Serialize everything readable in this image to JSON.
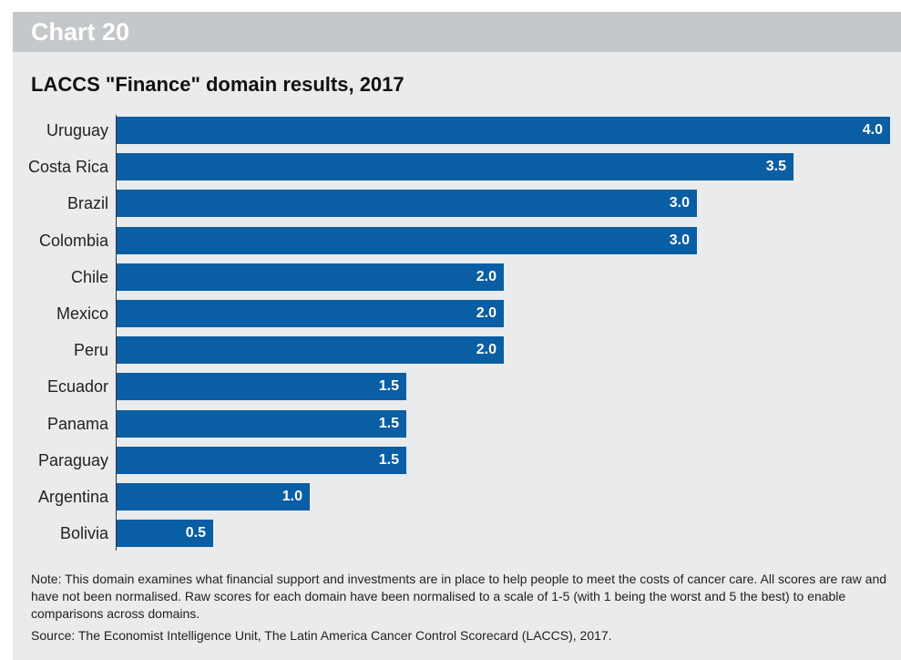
{
  "header": {
    "chart_label": "Chart 20",
    "title": "LACCS \"Finance\" domain results, 2017"
  },
  "chart_data": {
    "type": "bar",
    "orientation": "horizontal",
    "title": "LACCS \"Finance\" domain results, 2017",
    "categories": [
      "Uruguay",
      "Costa Rica",
      "Brazil",
      "Colombia",
      "Chile",
      "Mexico",
      "Peru",
      "Ecuador",
      "Panama",
      "Paraguay",
      "Argentina",
      "Bolivia"
    ],
    "values": [
      4.0,
      3.5,
      3.0,
      3.0,
      2.0,
      2.0,
      2.0,
      1.5,
      1.5,
      1.5,
      1.0,
      0.5
    ],
    "value_labels": [
      "4.0",
      "3.5",
      "3.0",
      "3.0",
      "2.0",
      "2.0",
      "2.0",
      "1.5",
      "1.5",
      "1.5",
      "1.0",
      "0.5"
    ],
    "xlim": [
      0,
      4
    ],
    "grid": false,
    "data_labels": "inside-end",
    "bar_color": "#0a5ea3"
  },
  "footer": {
    "note": "Note: This domain examines what financial support and investments are in place to help people to meet the costs of cancer care. All scores are raw and have not been normalised. Raw scores for each domain have been normalised to a scale of 1-5 (with 1 being the worst and 5 the best) to enable comparisons across domains.",
    "source": "Source: The Economist Intelligence Unit, The Latin America Cancer Control Scorecard (LACCS), 2017."
  },
  "colors": {
    "background": "#e9ebec",
    "header_bar": "#c5c8ca",
    "bar": "#0a5ea3"
  }
}
